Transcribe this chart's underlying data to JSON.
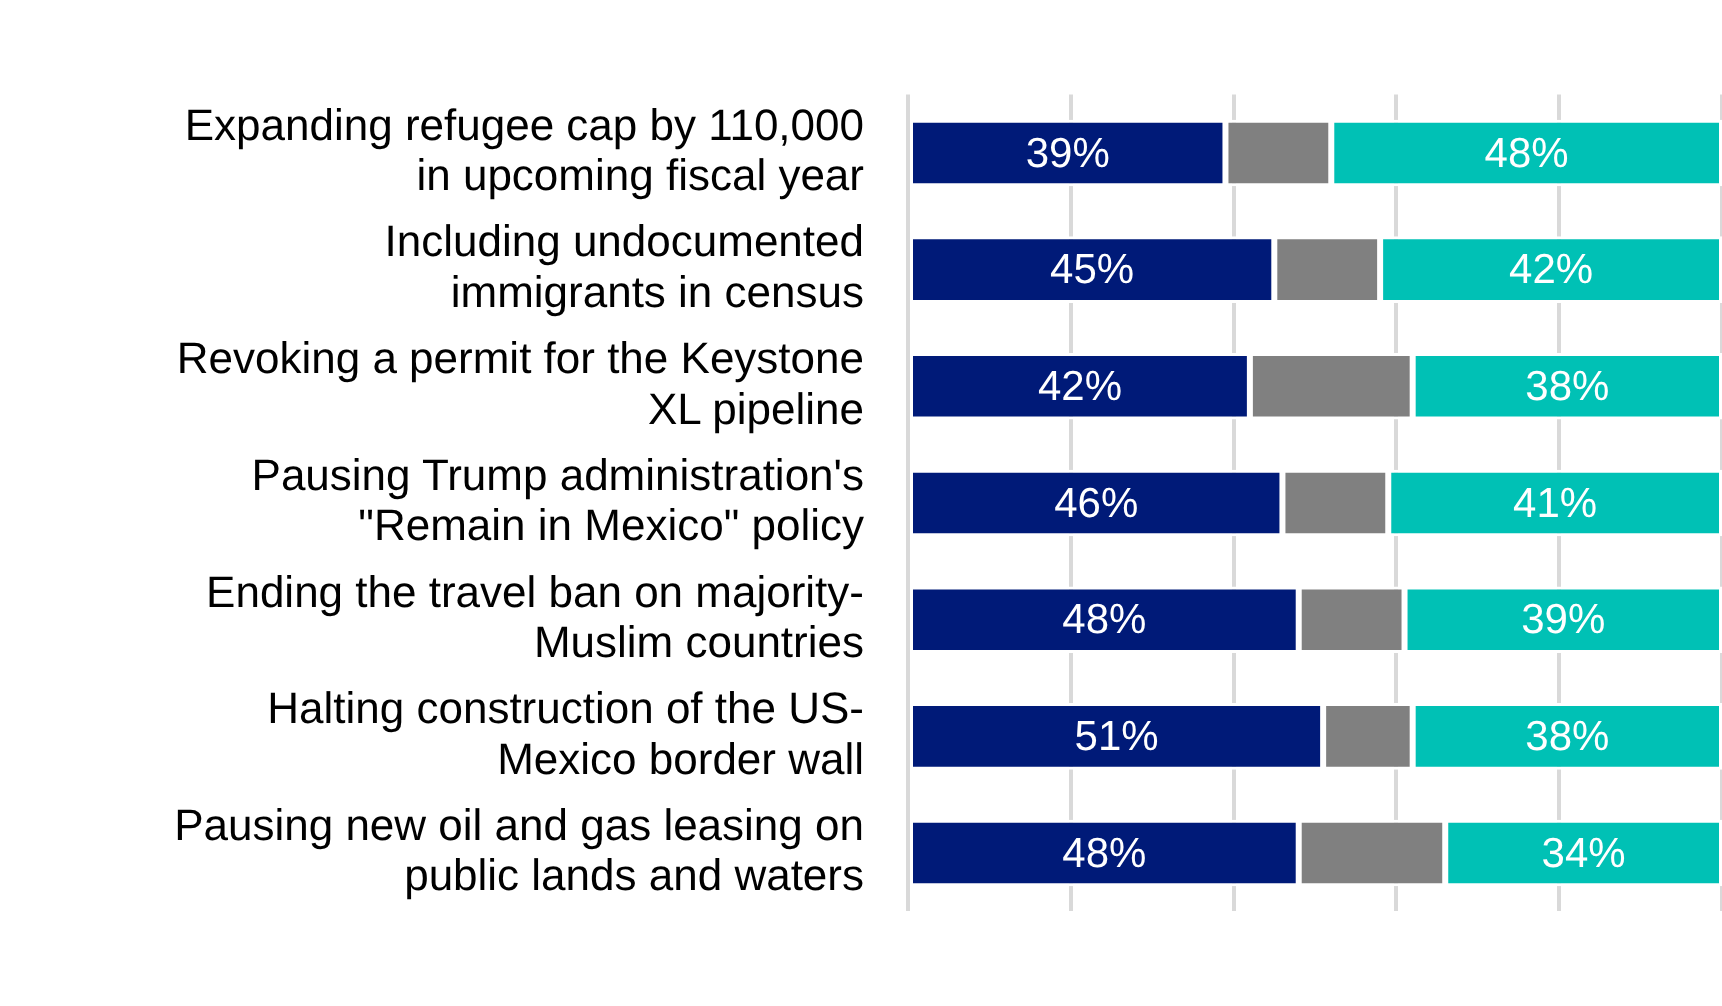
{
  "chart_data": {
    "type": "bar",
    "orientation": "horizontal",
    "stacked": true,
    "categories": [
      "Expanding refugee cap by 110,000\nin upcoming fiscal year",
      "Including undocumented\nimmigrants in census",
      "Revoking a permit for the Keystone\nXL pipeline",
      "Pausing Trump administration's\n\"Remain in Mexico\" policy",
      "Ending the travel ban on majority-\nMuslim countries",
      "Halting construction of the US-\nMexico border wall",
      "Pausing new oil and gas leasing on\npublic lands and waters"
    ],
    "series": [
      {
        "color": "#001a78",
        "values": [
          39,
          45,
          42,
          46,
          48,
          51,
          48
        ],
        "value_labels": [
          "39%",
          "45%",
          "42%",
          "46%",
          "48%",
          "51%",
          "48%"
        ]
      },
      {
        "color": "#808080",
        "values": [
          13,
          13,
          20,
          13,
          13,
          11,
          18
        ],
        "value_labels": [
          null,
          null,
          null,
          null,
          null,
          null,
          null
        ]
      },
      {
        "color": "#00c1b5",
        "values": [
          48,
          42,
          38,
          41,
          39,
          38,
          34
        ],
        "value_labels": [
          "48%",
          "42%",
          "38%",
          "41%",
          "39%",
          "38%",
          "34%"
        ]
      }
    ],
    "xlim": [
      0,
      100
    ],
    "xticks": [
      {
        "value": 0,
        "label": null
      },
      {
        "value": 20,
        "label": null
      },
      {
        "value": 40,
        "label": null
      },
      {
        "value": 60,
        "label": null
      },
      {
        "value": 80,
        "label": null
      },
      {
        "value": 100,
        "label": null
      }
    ],
    "grid": "x",
    "legend": false,
    "tick_labels": "y"
  }
}
